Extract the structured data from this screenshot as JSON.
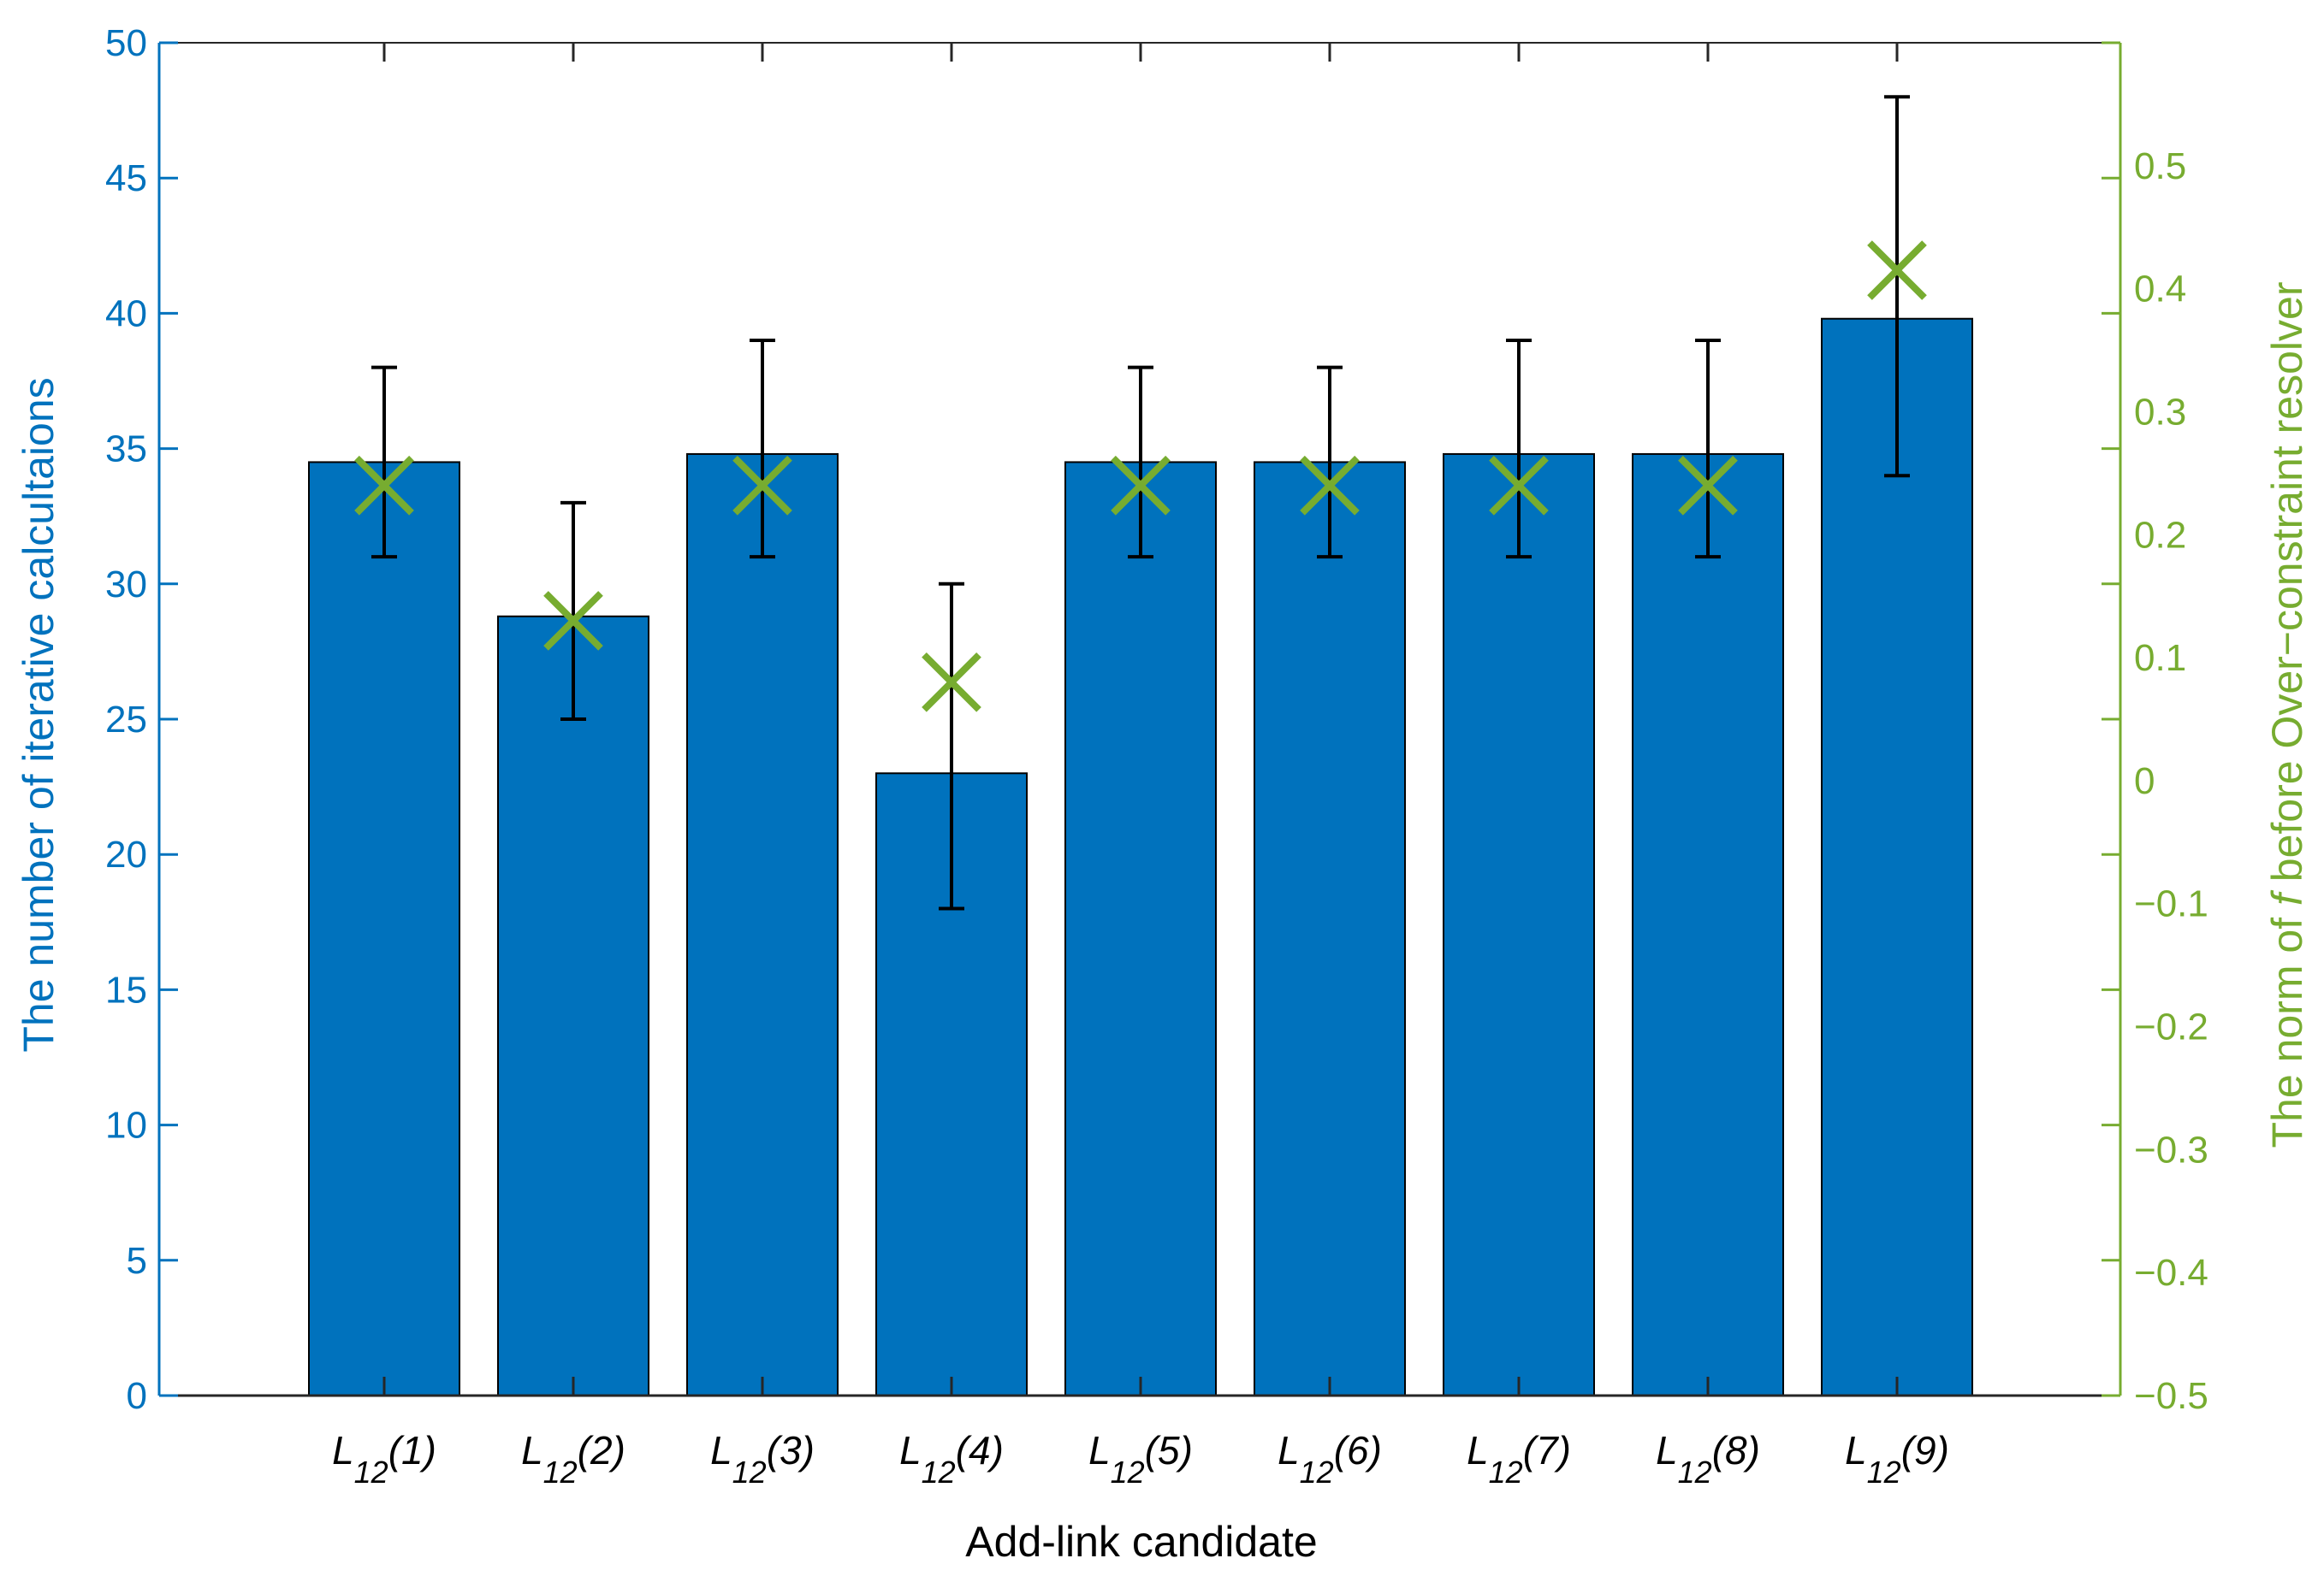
{
  "chart_data": {
    "type": "bar",
    "xlabel": "Add-link candidate",
    "categories": [
      {
        "main": "L",
        "sub": "12",
        "suffix": "(1)"
      },
      {
        "main": "L",
        "sub": "12",
        "suffix": "(2)"
      },
      {
        "main": "L",
        "sub": "12",
        "suffix": "(3)"
      },
      {
        "main": "L",
        "sub": "12",
        "suffix": "(4)"
      },
      {
        "main": "L",
        "sub": "12",
        "suffix": "(5)"
      },
      {
        "main": "L",
        "sub": "12",
        "suffix": "(6)"
      },
      {
        "main": "L",
        "sub": "12",
        "suffix": "(7)"
      },
      {
        "main": "L",
        "sub": "12",
        "suffix": "(8)"
      },
      {
        "main": "L",
        "sub": "12",
        "suffix": "(9)"
      }
    ],
    "left_axis": {
      "label": "The number of iterative calcultaions",
      "ylim": [
        0,
        50
      ],
      "ticks": [
        "0",
        "5",
        "10",
        "15",
        "20",
        "25",
        "30",
        "35",
        "40",
        "45",
        "50"
      ],
      "color": "#0072BD"
    },
    "right_axis": {
      "label_parts": [
        "The norm of ",
        "f",
        " before Over−constraint resolver"
      ],
      "ylim": [
        -0.5,
        0.6
      ],
      "ticks": [
        "−0.5",
        "−0.4",
        "−0.3",
        "−0.2",
        "−0.1",
        "0",
        "0.1",
        "0.2",
        "0.3",
        "0.4",
        "0.5"
      ],
      "tick_values": [
        -0.5,
        -0.4,
        -0.3,
        -0.2,
        -0.1,
        0,
        0.1,
        0.2,
        0.3,
        0.4,
        0.5
      ],
      "color": "#77AC30"
    },
    "series": [
      {
        "name": "Number of iterative calculations",
        "axis": "left",
        "style": "bar",
        "color": "#0072BD",
        "values": [
          34.5,
          28.8,
          34.8,
          23.0,
          34.5,
          34.5,
          34.8,
          34.8,
          39.8
        ],
        "error_low": [
          31,
          25,
          31,
          18,
          31,
          31,
          31,
          31,
          34
        ],
        "error_high": [
          38,
          33,
          39,
          30,
          38,
          38,
          39,
          39,
          48
        ]
      },
      {
        "name": "Norm of f before Over-constraint resolver",
        "axis": "right",
        "style": "x-marker",
        "color": "#77AC30",
        "values": [
          0.24,
          0.13,
          0.24,
          0.08,
          0.24,
          0.24,
          0.24,
          0.24,
          0.415
        ]
      }
    ]
  }
}
